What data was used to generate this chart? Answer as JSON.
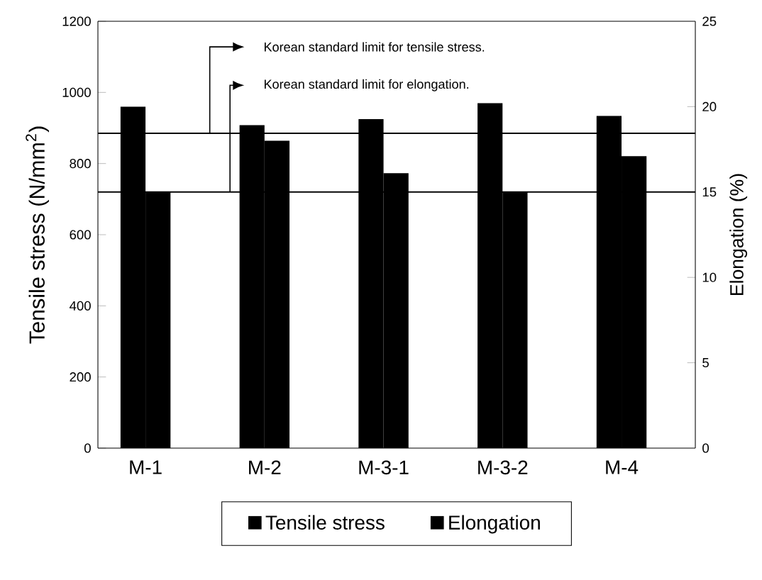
{
  "chart_data": {
    "type": "bar",
    "categories": [
      "M-1",
      "M-2",
      "M-3-1",
      "M-3-2",
      "M-4"
    ],
    "series": [
      {
        "name": "Tensile stress",
        "color": "#000000",
        "values": [
          960,
          908,
          925,
          970,
          934
        ]
      },
      {
        "name": "Elongation",
        "color": "#000000",
        "axis": "y2",
        "values": [
          15.0,
          18.0,
          16.1,
          15.0,
          17.1
        ]
      }
    ],
    "ylabel": "Tensile stress (N/mm$^{2}$)",
    "y2label": "Elongation (%)",
    "ylim": [
      0,
      1200
    ],
    "yticks": [
      0,
      200,
      400,
      600,
      800,
      1000,
      1200
    ],
    "y2lim": [
      0,
      25
    ],
    "y2ticks": [
      0,
      5,
      10,
      15,
      20,
      25
    ],
    "ref_lines": [
      {
        "axis": "y",
        "value": 885,
        "label": "Korean standard limit for tensile stress."
      },
      {
        "axis": "y2",
        "value": 15,
        "label": "Korean standard limit for elongation."
      }
    ],
    "legend": "bottom"
  }
}
